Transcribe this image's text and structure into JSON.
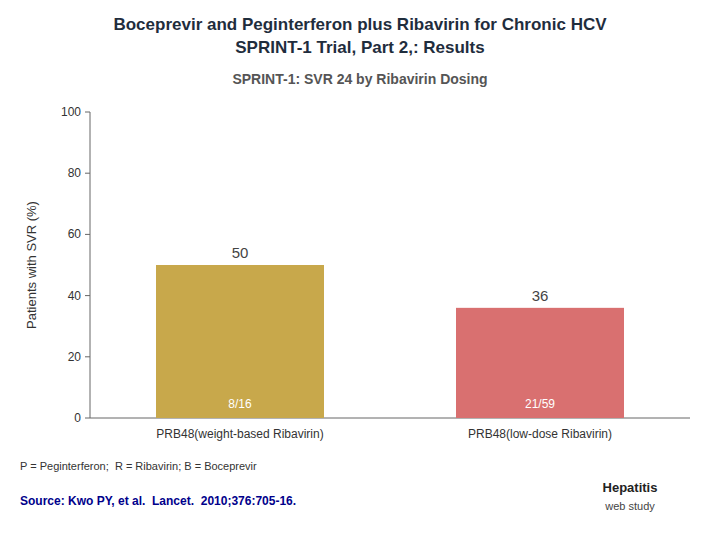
{
  "chart_data": {
    "type": "bar",
    "title": [
      "Boceprevir and Peginterferon plus Ribavirin for Chronic HCV",
      "SPRINT-1 Trial, Part 2,: Results"
    ],
    "subtitle": "SPRINT-1: SVR 24 by Ribavirin Dosing",
    "categories": [
      "PRB48(weight-based Ribavirin)",
      "PRB48(low-dose Ribavirin)"
    ],
    "values": [
      50,
      36
    ],
    "colors": [
      "#C8A84B",
      "#D97070"
    ],
    "data_labels": true,
    "bar_annotations": [
      "8/16",
      "21/59"
    ],
    "ylabel": "Patients with SVR (%)",
    "ylim": [
      0,
      100
    ],
    "yticks": [
      0,
      20,
      40,
      60,
      80,
      100
    ],
    "grid": false,
    "footnote": "P = Peginterferon;  R = Ribavirin; B = Boceprevir",
    "source": "Source: Kwo PY, et al.  Lancet.  2010;376:705-16.",
    "logo": [
      "Hepatitis",
      "web study"
    ]
  }
}
